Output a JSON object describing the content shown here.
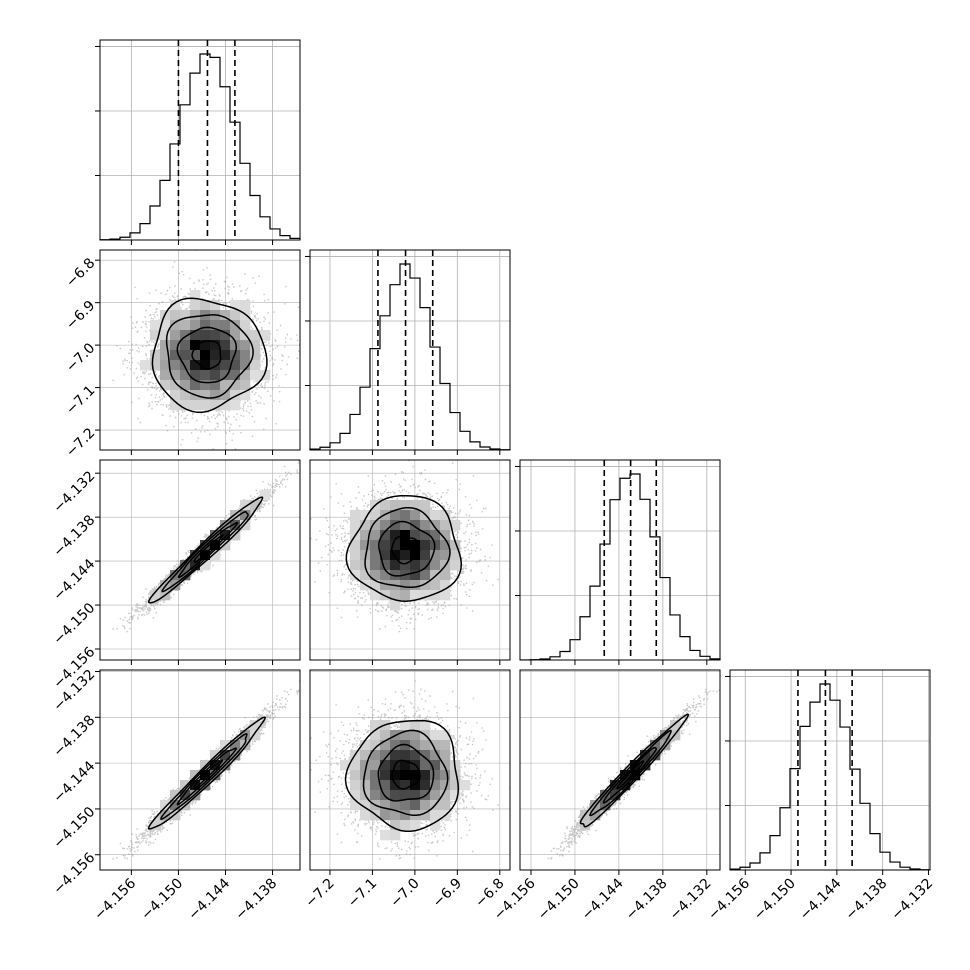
{
  "colors": {
    "ink": "#000000",
    "grid": "#b0b0b0",
    "scatter": "#9a9a9a",
    "frame": "#000000"
  },
  "chart_data": {
    "type": "corner",
    "grid": true,
    "parameters": [
      {
        "range": [
          -4.16,
          -4.1345
        ],
        "ticks": [
          -4.156,
          -4.15,
          -4.144,
          -4.138
        ],
        "tick_labels": [
          "−4.156",
          "−4.150",
          "−4.144",
          "−4.138"
        ]
      },
      {
        "range": [
          -7.247,
          -6.776
        ],
        "ticks": [
          -7.2,
          -7.1,
          -7.0,
          -6.9,
          -6.8
        ],
        "tick_labels": [
          "−7.2",
          "−7.1",
          "−7.0",
          "−6.9",
          "−6.8"
        ]
      },
      {
        "range": [
          -4.1575,
          -4.1302
        ],
        "ticks": [
          -4.156,
          -4.15,
          -4.144,
          -4.138,
          -4.132
        ],
        "tick_labels": [
          "−4.156",
          "−4.150",
          "−4.144",
          "−4.138",
          "−4.132"
        ]
      },
      {
        "range": [
          -4.158,
          -4.1318
        ],
        "ticks": [
          -4.156,
          -4.15,
          -4.144,
          -4.138,
          -4.132
        ],
        "tick_labels": [
          "−4.156",
          "−4.150",
          "−4.144",
          "−4.138",
          "−4.132"
        ]
      }
    ],
    "marginals": [
      {
        "center": -4.1463,
        "sigma": 0.0036,
        "quantiles": [
          -4.15,
          -4.1463,
          -4.1428
        ]
      },
      {
        "center": -7.022,
        "sigma": 0.065,
        "quantiles": [
          -7.087,
          -7.022,
          -6.958
        ]
      },
      {
        "center": -4.1424,
        "sigma": 0.0036,
        "quantiles": [
          -4.146,
          -4.1424,
          -4.1389
        ]
      },
      {
        "center": -4.1455,
        "sigma": 0.0036,
        "quantiles": [
          -4.1491,
          -4.1455,
          -4.142
        ]
      }
    ],
    "correlation": [
      [
        1.0,
        0.0,
        0.98,
        0.98
      ],
      [
        0.0,
        1.0,
        0.0,
        0.0
      ],
      [
        0.98,
        0.0,
        1.0,
        0.98
      ],
      [
        0.98,
        0.0,
        0.98,
        1.0
      ]
    ],
    "contour_levels_sigma": [
      0.5,
      1.0,
      1.5,
      2.0
    ]
  }
}
